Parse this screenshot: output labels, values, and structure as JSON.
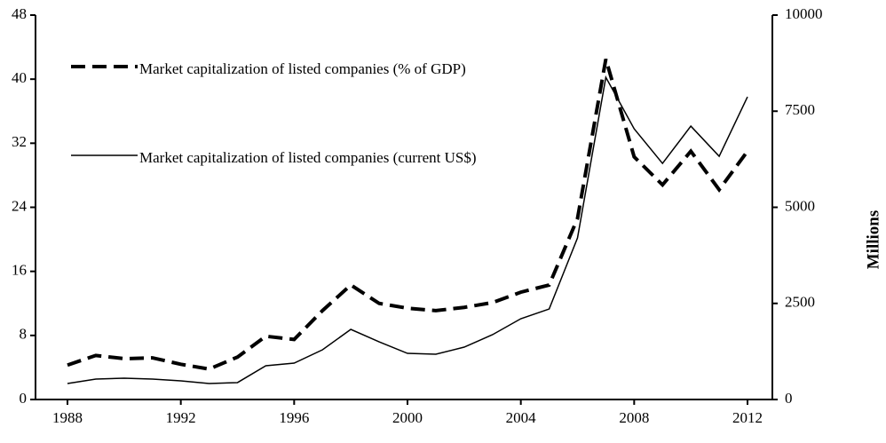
{
  "chart_data": {
    "type": "line",
    "x": [
      1988,
      1989,
      1990,
      1991,
      1992,
      1993,
      1994,
      1995,
      1996,
      1997,
      1998,
      1999,
      2000,
      2001,
      2002,
      2003,
      2004,
      2005,
      2006,
      2007,
      2008,
      2009,
      2010,
      2011,
      2012
    ],
    "series": [
      {
        "name": "Market capitalization of listed companies (% of GDP)",
        "color": "#000000",
        "dash": true,
        "values": [
          4.3,
          5.5,
          5.1,
          5.2,
          4.4,
          3.8,
          5.3,
          7.9,
          7.5,
          11.1,
          14.3,
          12.0,
          11.4,
          11.1,
          11.5,
          12.1,
          13.4,
          14.3,
          22.6,
          42.5,
          30.3,
          26.8,
          31.0,
          26.2,
          31.0
        ]
      },
      {
        "name": "Market capitalization of listed companies (current US$)",
        "color": "#000000",
        "dash": false,
        "axis": "y2",
        "values": [
          415,
          530,
          555,
          530,
          485,
          415,
          440,
          877,
          947,
          1293,
          1824,
          1500,
          1200,
          1178,
          1362,
          1686,
          2101,
          2355,
          4202,
          8382,
          7042,
          6142,
          7112,
          6327,
          7874
        ]
      }
    ],
    "xlim": [
      1988,
      2012
    ],
    "xticks": [
      1988,
      1992,
      1996,
      2000,
      2004,
      2008,
      2012
    ],
    "ylim": [
      0,
      48
    ],
    "yticks": [
      0,
      8,
      16,
      24,
      32,
      40,
      48
    ],
    "y2lim": [
      0,
      10000
    ],
    "y2ticks": [
      0,
      2500,
      5000,
      7500,
      10000
    ],
    "y2label": "Millions"
  }
}
